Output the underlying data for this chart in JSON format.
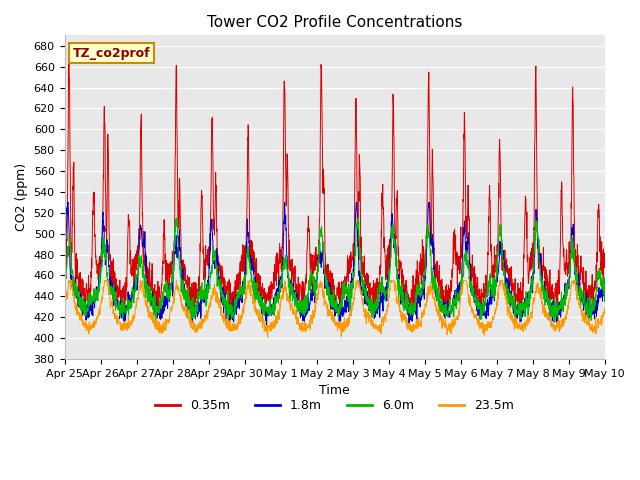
{
  "title": "Tower CO2 Profile Concentrations",
  "xlabel": "Time",
  "ylabel": "CO2 (ppm)",
  "ylim": [
    380,
    690
  ],
  "yticks": [
    380,
    400,
    420,
    440,
    460,
    480,
    500,
    520,
    540,
    560,
    580,
    600,
    620,
    640,
    660,
    680
  ],
  "legend_label": "TZ_co2prof",
  "series_labels": [
    "0.35m",
    "1.8m",
    "6.0m",
    "23.5m"
  ],
  "series_colors": [
    "#dd0000",
    "#0000cc",
    "#00bb00",
    "#ff9900"
  ],
  "plot_bg_color": "#e8e8e8",
  "n_days": 15,
  "tick_labels": [
    "Apr 25",
    "Apr 26",
    "Apr 27",
    "Apr 28",
    "Apr 29",
    "Apr 30",
    "May 1",
    "May 2",
    "May 3",
    "May 4",
    "May 5",
    "May 6",
    "May 7",
    "May 8",
    "May 9",
    "May 10"
  ],
  "title_fontsize": 11,
  "axis_label_fontsize": 9,
  "tick_fontsize": 8,
  "legend_fontsize": 9
}
